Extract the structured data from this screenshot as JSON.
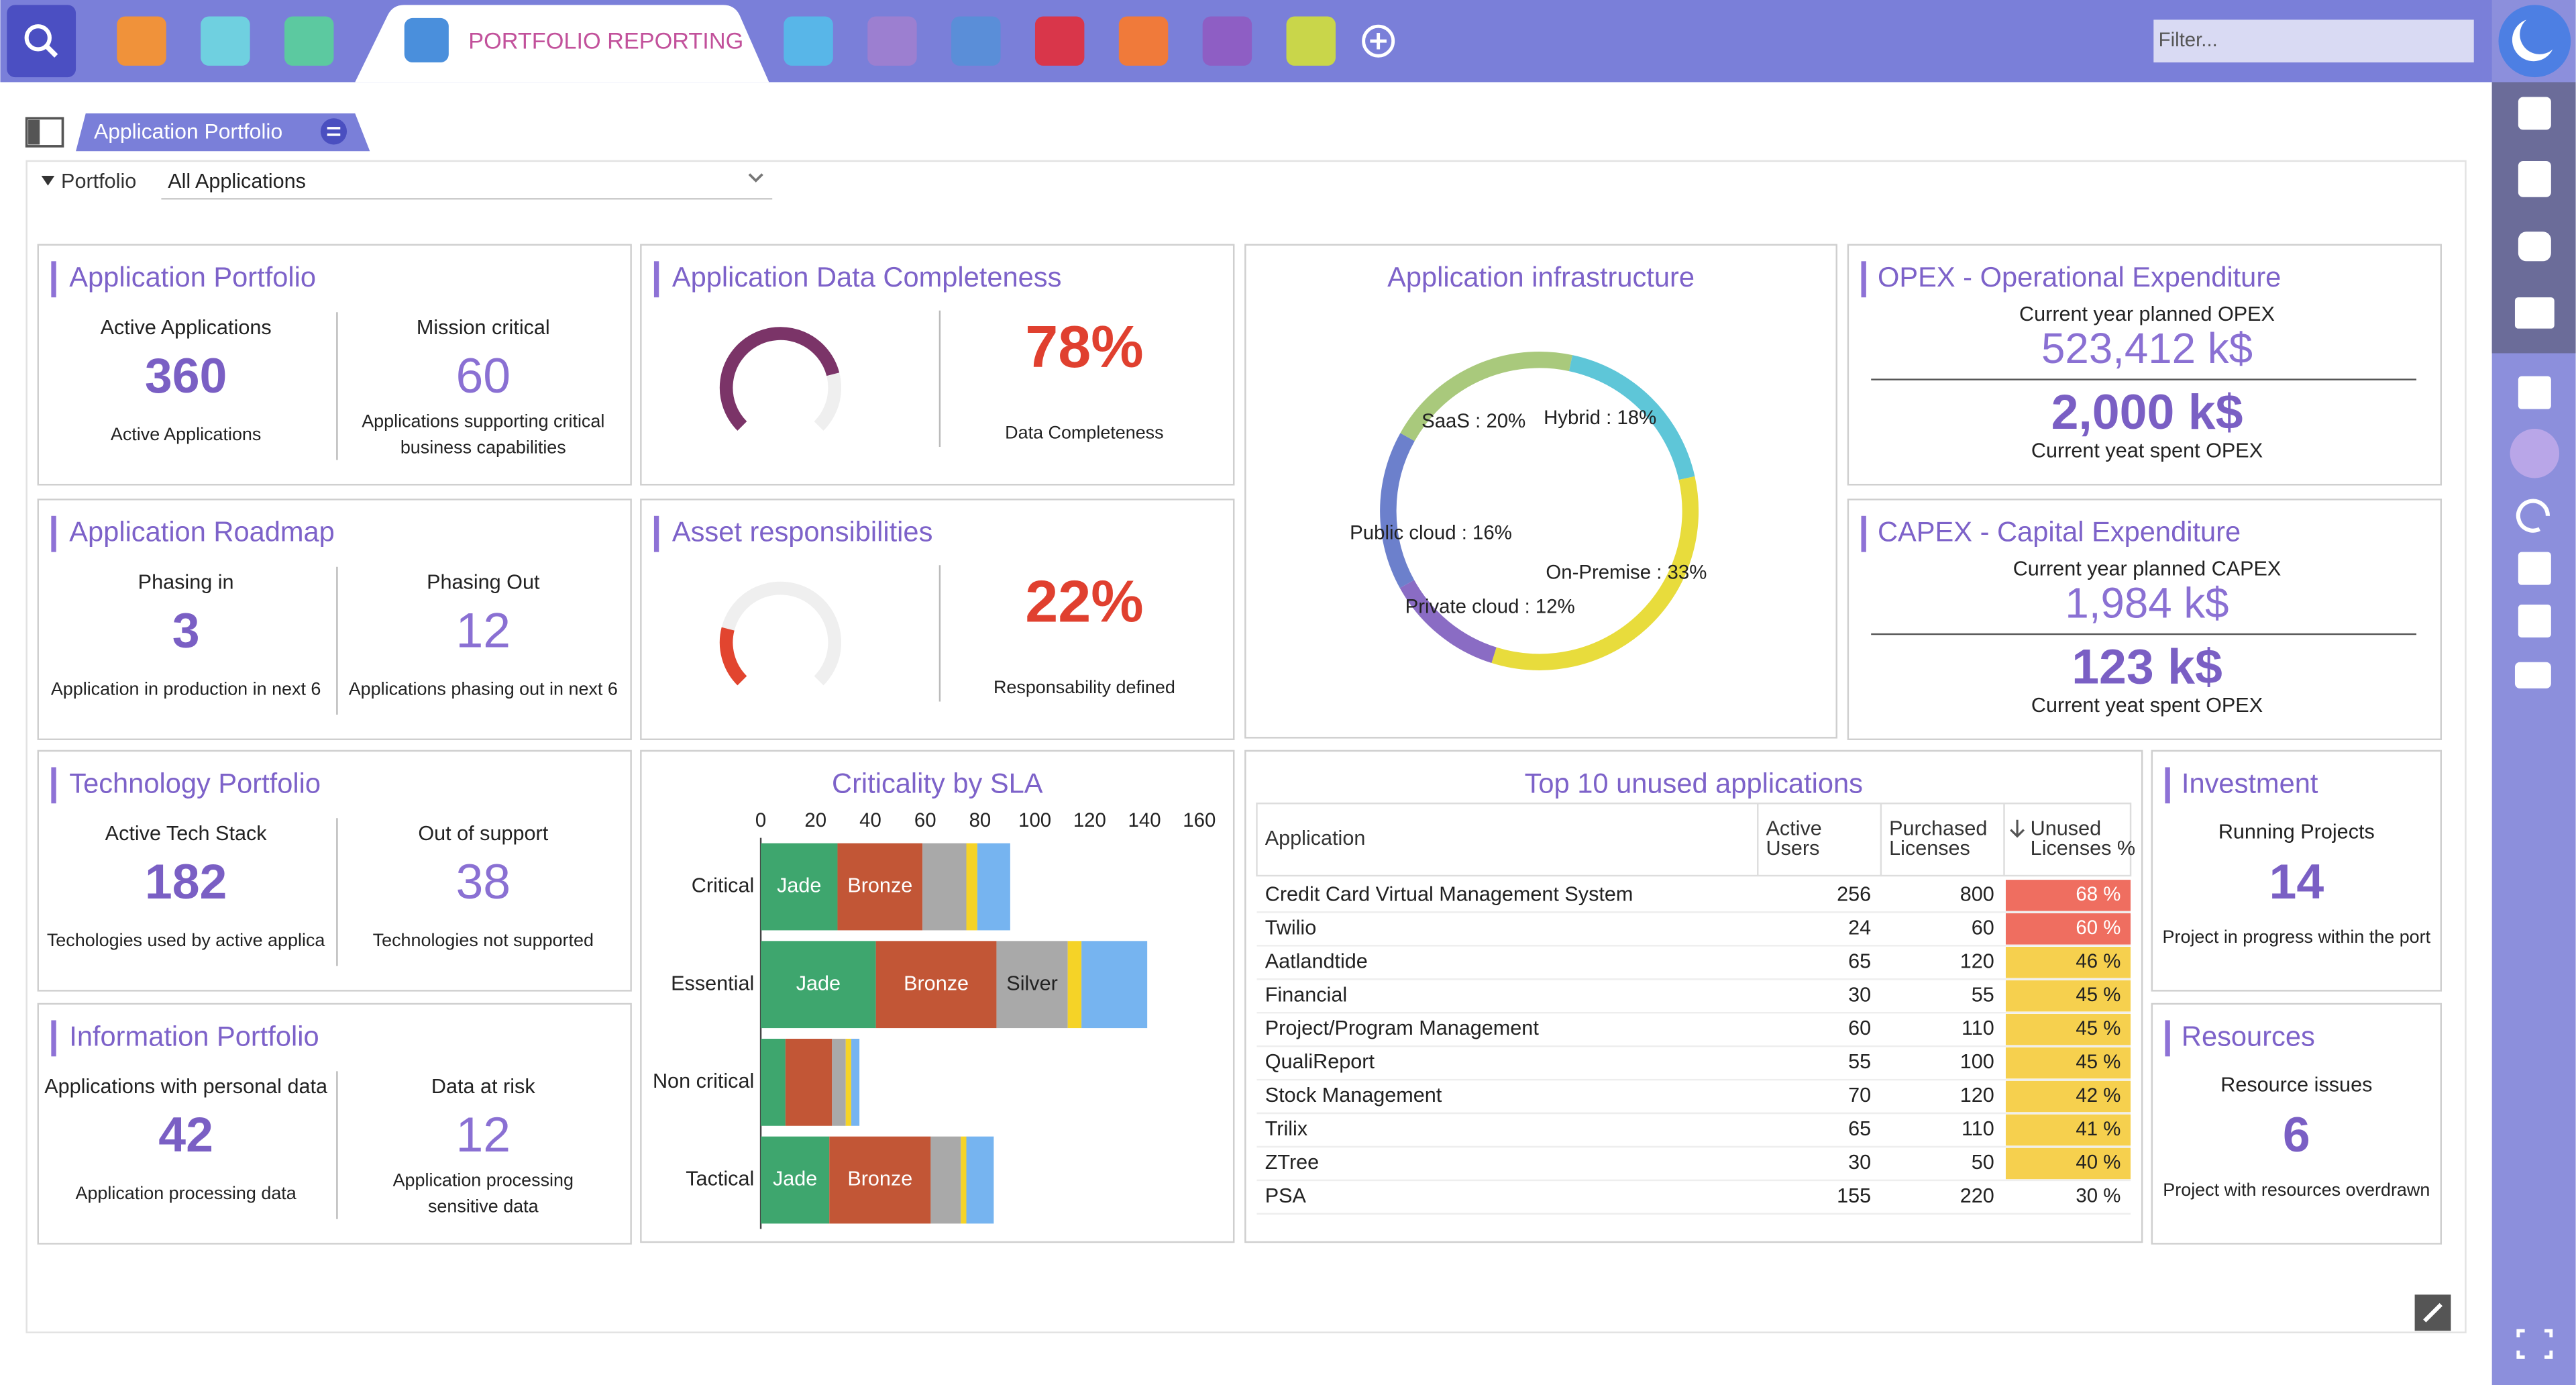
{
  "top_bar": {
    "active_tab": "PORTFOLIO REPORTING",
    "filter_placeholder": "Filter..."
  },
  "breadcrumb": "Application Portfolio",
  "portfolio_filter": {
    "label": "Portfolio",
    "value": "All Applications"
  },
  "kpi_tiles": [
    {
      "title": "Application Portfolio",
      "cells": [
        {
          "label": "Active Applications",
          "value": 360,
          "caption": [
            "Active Applications"
          ]
        },
        {
          "label": "Mission critical",
          "value": 60,
          "caption": [
            "Applications supporting critical",
            "business capabilities"
          ]
        }
      ]
    },
    {
      "title": "Application Roadmap",
      "cells": [
        {
          "label": "Phasing in",
          "value": 3,
          "caption": [
            "Application in production in next 6"
          ]
        },
        {
          "label": "Phasing Out",
          "value": 12,
          "caption": [
            "Applications phasing out in next 6"
          ]
        }
      ]
    },
    {
      "title": "Technology Portfolio",
      "cells": [
        {
          "label": "Active Tech Stack",
          "value": 182,
          "caption": [
            "Techologies used by active applica"
          ]
        },
        {
          "label": "Out of support",
          "value": 38,
          "caption": [
            "Technologies not supported"
          ]
        }
      ]
    },
    {
      "title": "Information Portfolio",
      "cells": [
        {
          "label": "Applications with personal data",
          "value": 42,
          "caption": [
            "Application processing data"
          ]
        },
        {
          "label": "Data at risk",
          "value": 12,
          "caption": [
            "Application processing",
            "sensitive data"
          ]
        }
      ]
    }
  ],
  "gauges": [
    {
      "title": "Application Data Completeness",
      "value": 78,
      "value_label": "78%",
      "caption": "Data Completeness",
      "color": "#7b3468"
    },
    {
      "title": "Asset responsibilities",
      "value": 22,
      "value_label": "22%",
      "caption": "Responsability defined",
      "color": "#e2452f"
    }
  ],
  "infrastructure": {
    "type": "pie",
    "title": "Application infrastructure",
    "values": [
      18,
      33,
      12,
      16,
      20
    ],
    "value_labels": [
      "Hybrid : 18%",
      "On-Premise : 33%",
      "Private cloud : 12%",
      "Public cloud : 16%",
      "SaaS : 20%"
    ],
    "colors": [
      "#5ec6d8",
      "#e8dc3c",
      "#8a6cc4",
      "#6c80cc",
      "#a9c97c"
    ]
  },
  "expenditures": [
    {
      "title": "OPEX - Operational Expenditure",
      "planned_label": "Current year planned OPEX",
      "planned": "523,412 k$",
      "spent": "2,000 k$",
      "spent_label": "Current yeat spent OPEX"
    },
    {
      "title": "CAPEX - Capital Expenditure",
      "planned_label": "Current year planned CAPEX",
      "planned": "1,984 k$",
      "spent": "123 k$",
      "spent_label": "Current yeat spent OPEX"
    }
  ],
  "criticality": {
    "type": "bar",
    "orientation": "horizontal",
    "stacked": true,
    "title": "Criticality by SLA",
    "categories": [
      "Critical",
      "Essential",
      "Non critical",
      "Tactical"
    ],
    "series": [
      {
        "name": "Jade",
        "color": "#3ea66e",
        "values": [
          28,
          42,
          9,
          25
        ]
      },
      {
        "name": "Bronze",
        "color": "#c25636",
        "values": [
          31,
          44,
          17,
          37
        ]
      },
      {
        "name": "Silver",
        "color": "#a9a9a9",
        "values": [
          16,
          26,
          5,
          11
        ]
      },
      {
        "color": "#f5d327",
        "values": [
          4,
          5,
          2,
          2
        ]
      },
      {
        "color": "#76b4f0",
        "values": [
          12,
          24,
          3,
          10
        ]
      }
    ],
    "xlim": [
      0,
      160
    ],
    "xticks": [
      0,
      20,
      40,
      60,
      80,
      100,
      120,
      140,
      160
    ]
  },
  "unused_apps": {
    "title": "Top 10 unused applications",
    "columns": [
      [
        "Application"
      ],
      [
        "Active",
        "Users"
      ],
      [
        "Purchased",
        "Licenses"
      ],
      [
        "Unused",
        "Licenses %"
      ]
    ],
    "rows": [
      {
        "application": "Credit Card Virtual Management System",
        "active_users": 256,
        "purchased_licenses": 800,
        "unused": 68,
        "unused_label": "68 %",
        "color": "#ef6e60"
      },
      {
        "application": "Twilio",
        "active_users": 24,
        "purchased_licenses": 60,
        "unused": 60,
        "unused_label": "60 %",
        "color": "#ef6e60"
      },
      {
        "application": "Aatlandtide",
        "active_users": 65,
        "purchased_licenses": 120,
        "unused": 46,
        "unused_label": "46 %",
        "color": "#f6d04e"
      },
      {
        "application": "Financial",
        "active_users": 30,
        "purchased_licenses": 55,
        "unused": 45,
        "unused_label": "45 %",
        "color": "#f6d04e"
      },
      {
        "application": "Project/Program Management",
        "active_users": 60,
        "purchased_licenses": 110,
        "unused": 45,
        "unused_label": "45 %",
        "color": "#f6d04e"
      },
      {
        "application": "QualiReport",
        "active_users": 55,
        "purchased_licenses": 100,
        "unused": 45,
        "unused_label": "45 %",
        "color": "#f6d04e"
      },
      {
        "application": "Stock Management",
        "active_users": 70,
        "purchased_licenses": 120,
        "unused": 42,
        "unused_label": "42 %",
        "color": "#f6d04e"
      },
      {
        "application": "Trilix",
        "active_users": 65,
        "purchased_licenses": 110,
        "unused": 41,
        "unused_label": "41 %",
        "color": "#f6d04e"
      },
      {
        "application": "ZTree",
        "active_users": 30,
        "purchased_licenses": 50,
        "unused": 40,
        "unused_label": "40 %",
        "color": "#f6d04e"
      },
      {
        "application": "PSA",
        "active_users": 155,
        "purchased_licenses": 220,
        "unused": 30,
        "unused_label": "30 %"
      }
    ]
  },
  "side_tiles": [
    {
      "title": "Investment",
      "label": "Running Projects",
      "value": 14,
      "caption": "Project in progress within the port"
    },
    {
      "title": "Resources",
      "label": "Resource issues",
      "value": 6,
      "caption": "Project with resources overdrawn"
    }
  ]
}
